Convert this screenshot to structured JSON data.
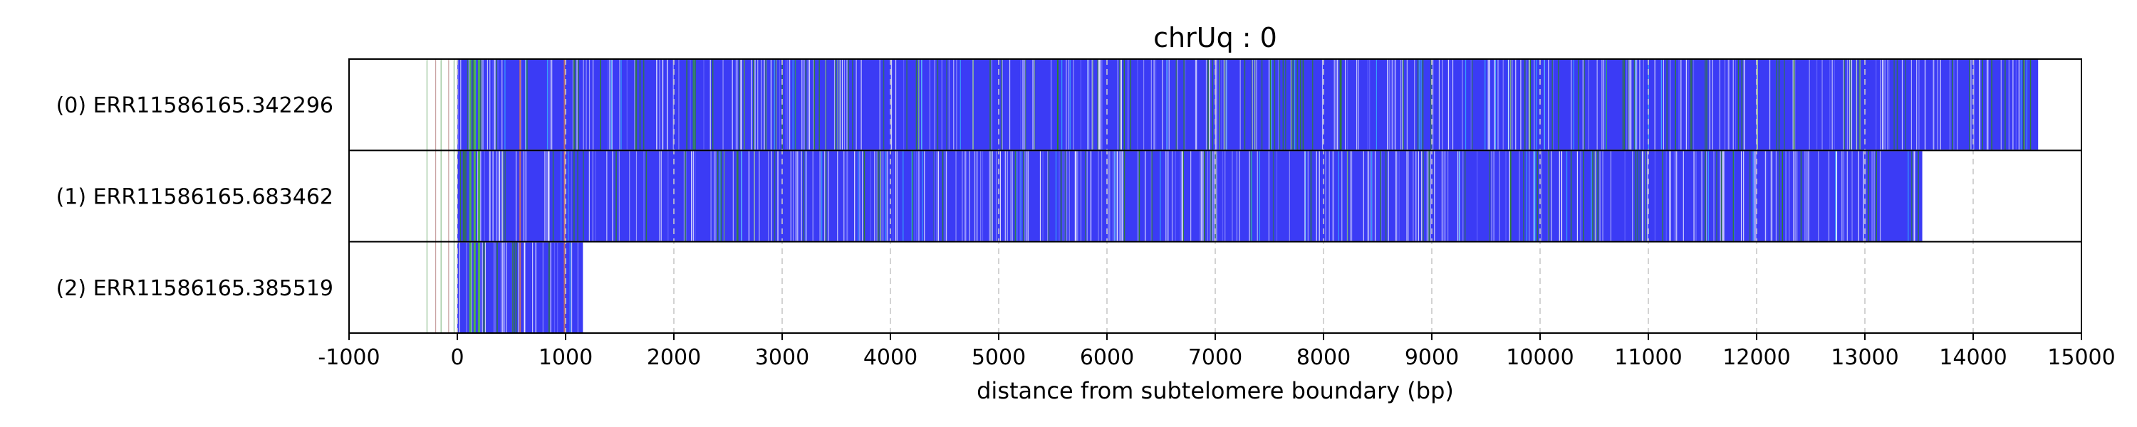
{
  "chart_data": {
    "type": "bar",
    "title": "chrUq : 0",
    "xlabel": "distance from subtelomere boundary (bp)",
    "xlim": [
      -1000,
      15000
    ],
    "xticks": [
      -1000,
      0,
      1000,
      2000,
      3000,
      4000,
      5000,
      6000,
      7000,
      8000,
      9000,
      10000,
      11000,
      12000,
      13000,
      14000,
      15000
    ],
    "grid": "vertical dashed",
    "colors": {
      "read_fill": "#3b3bf5",
      "repeat_stripe": "#2e7d32",
      "light_stripe": "#d9d9ff",
      "cyan_stripe": "#33ccff",
      "pre_boundary_line": "#c8a0a0",
      "grid": "#c8c8c8"
    },
    "reads": [
      {
        "label": "(0) ERR11586165.342296",
        "start": 0,
        "end": 14600
      },
      {
        "label": "(1) ERR11586165.683462",
        "start": 0,
        "end": 13530
      },
      {
        "label": "(2) ERR11586165.385519",
        "start": 0,
        "end": 1160
      }
    ]
  }
}
